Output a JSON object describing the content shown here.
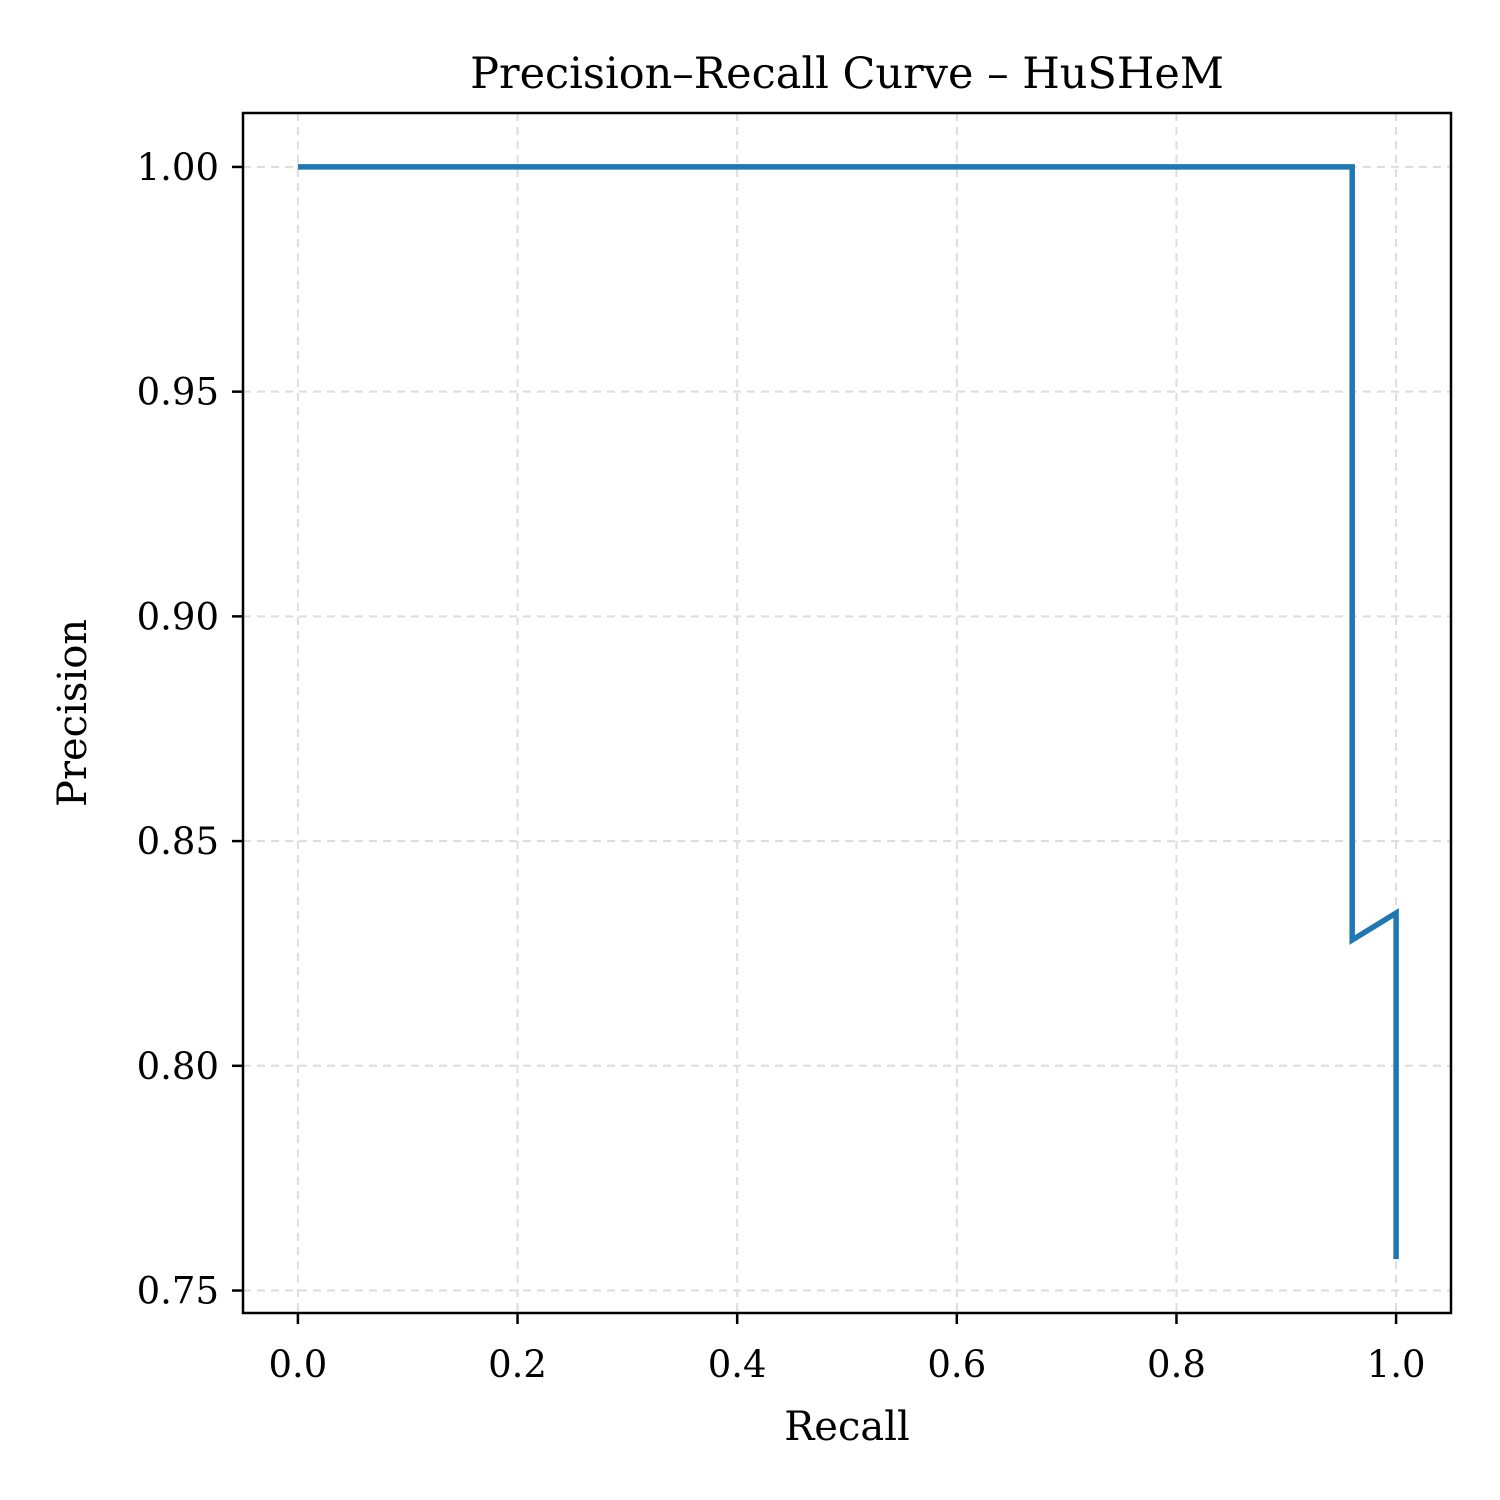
{
  "chart_data": {
    "type": "line",
    "title": "Precision–Recall Curve – HuSHeM",
    "xlabel": "Recall",
    "ylabel": "Precision",
    "xlim": [
      -0.05,
      1.05
    ],
    "ylim": [
      0.745,
      1.012
    ],
    "x_ticks": [
      0.0,
      0.2,
      0.4,
      0.6,
      0.8,
      1.0
    ],
    "x_tick_labels": [
      "0.0",
      "0.2",
      "0.4",
      "0.6",
      "0.8",
      "1.0"
    ],
    "y_ticks": [
      0.75,
      0.8,
      0.85,
      0.9,
      0.95,
      1.0
    ],
    "y_tick_labels": [
      "0.75",
      "0.80",
      "0.85",
      "0.90",
      "0.95",
      "1.00"
    ],
    "grid": true,
    "series": [
      {
        "color": "#1f77b4",
        "x": [
          0.0,
          0.96,
          0.96,
          1.0,
          1.0
        ],
        "y": [
          1.0,
          1.0,
          0.828,
          0.834,
          0.757
        ]
      }
    ]
  }
}
